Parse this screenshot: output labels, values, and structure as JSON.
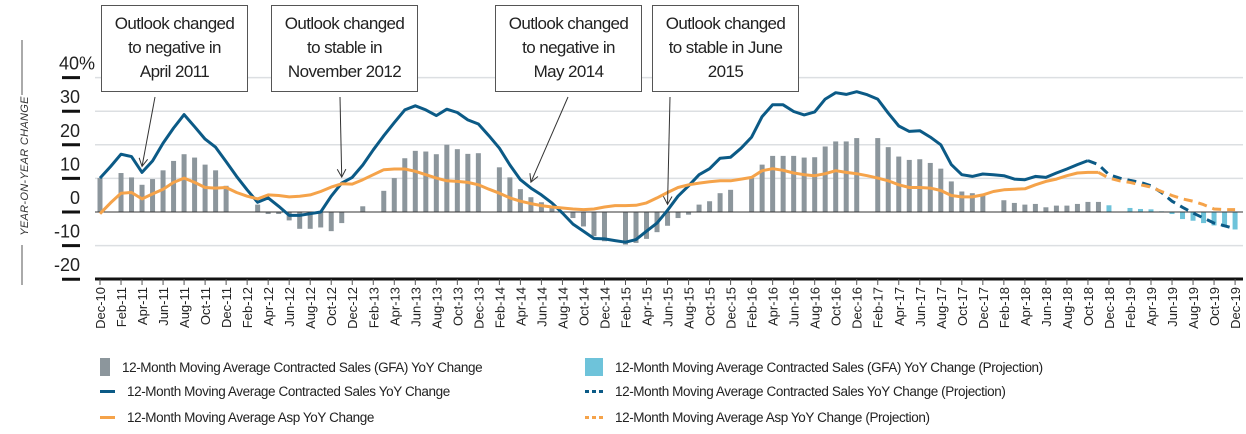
{
  "chart_data": {
    "type": "bar+line",
    "ylabel": "YEAR-ON-YEAR CHANGE",
    "ylim": [
      -20,
      40
    ],
    "yticks": [
      "40%",
      "30",
      "20",
      "10",
      "0",
      "-10",
      "-20"
    ],
    "ytick_values": [
      40,
      30,
      20,
      10,
      0,
      -10,
      -20
    ],
    "grid": true,
    "legend_position": "bottom",
    "start_month": "Dec-10",
    "x_tick_labels": [
      "Dec-10",
      "Feb-11",
      "Apr-11",
      "Jun-11",
      "Aug-11",
      "Oct-11",
      "Dec-11",
      "Feb-12",
      "Apr-12",
      "Jun-12",
      "Aug-12",
      "Oct-12",
      "Dec-12",
      "Feb-13",
      "Apr-13",
      "Jun-13",
      "Aug-13",
      "Oct-13",
      "Dec-13",
      "Feb-14",
      "Apr-14",
      "Jun-14",
      "Aug-14",
      "Oct-14",
      "Dec-14",
      "Feb-15",
      "Apr-15",
      "Jun-15",
      "Aug-15",
      "Oct-15",
      "Dec-15",
      "Feb-16",
      "Apr-16",
      "Jun-16",
      "Aug-16",
      "Oct-16",
      "Dec-16",
      "Feb-17",
      "Apr-17",
      "Jun-17",
      "Aug-17",
      "Oct-17",
      "Dec-17",
      "Feb-18",
      "Apr-18",
      "Jun-18",
      "Aug-18",
      "Oct-18",
      "Dec-18",
      "Feb-19",
      "Apr-19",
      "Jun-19",
      "Aug-19",
      "Oct-19",
      "Dec-19"
    ],
    "series": [
      {
        "name": "12-Month Moving Average Contracted Sales (GFA) YoY Change",
        "type": "bar",
        "color": "#8c969c",
        "values": [
          10.1,
          null,
          11.6,
          10.3,
          8.1,
          9.8,
          12.4,
          15.2,
          17.2,
          16.2,
          14.1,
          12.4,
          7.8,
          null,
          null,
          2.2,
          -0.6,
          -0.6,
          -2.5,
          -5,
          -5,
          -4.6,
          -5.7,
          -3.3,
          null,
          1.7,
          null,
          6.3,
          10.1,
          16,
          18.2,
          18,
          17.2,
          20,
          18.7,
          17.3,
          17.5,
          null,
          13.3,
          10.3,
          6.8,
          4.4,
          2.9,
          1.7,
          null,
          -1.8,
          -4.3,
          -7.2,
          -8.7,
          null,
          -9.7,
          -9.2,
          -8,
          -6,
          -4.1,
          -1.8,
          -0.8,
          2.2,
          3.2,
          5.6,
          6.6,
          null,
          10.1,
          14.1,
          16.7,
          16.7,
          16.7,
          16.2,
          16.3,
          19.5,
          21,
          21,
          22,
          null,
          22,
          19.3,
          16.5,
          15.5,
          15.7,
          14.6,
          12.9,
          9.1,
          6.1,
          5.6,
          5.1,
          null,
          3.5,
          2.7,
          2.2,
          2.4,
          1.4,
          1.9,
          1.9,
          2.4,
          3,
          3
        ]
      },
      {
        "name": "12-Month Moving Average Contracted Sales (GFA) YoY Change (Projection)",
        "type": "bar",
        "color": "#6ec3da",
        "start_index": 96,
        "values": [
          2,
          null,
          1.2,
          0.9,
          0.8,
          0.2,
          -0.6,
          -2.1,
          -2.6,
          -3.3,
          -4,
          -4.5,
          -5.2
        ]
      },
      {
        "name": "12-Month Moving Average Contracted Sales YoY Change",
        "type": "line",
        "color": "#0b5a86",
        "values": [
          10.1,
          13.5,
          17.2,
          16.5,
          11.8,
          15.2,
          20.5,
          25,
          29,
          25.4,
          21.7,
          19.3,
          15,
          10.6,
          6.6,
          2.9,
          4.2,
          1.7,
          -1,
          -1,
          -0.5,
          0,
          4.7,
          8.6,
          10.3,
          14,
          18.5,
          22.7,
          26.6,
          30.4,
          31.6,
          30.4,
          28.7,
          30.6,
          29.6,
          27.4,
          26.2,
          22.7,
          19,
          14,
          9.6,
          7.1,
          5.1,
          2.7,
          -0.3,
          -3.6,
          -5.7,
          -7.9,
          -8,
          -8.5,
          -9,
          -8.2,
          -5.7,
          -3.3,
          0.5,
          4.7,
          7.8,
          11.1,
          12.9,
          16,
          16.3,
          19,
          22.3,
          28.4,
          31.9,
          31.9,
          29.9,
          28.9,
          29.8,
          33.6,
          35.5,
          35,
          35.8,
          34.9,
          33.6,
          29.4,
          25.6,
          24,
          24.2,
          22.3,
          20,
          14.1,
          11.1,
          10.6,
          11.3,
          11.1,
          10.8,
          9.8,
          9.6,
          10.6,
          10.3,
          11.6,
          12.8,
          14.1,
          15.3
        ]
      },
      {
        "name": "12-Month Moving Average Contracted Sales YoY Change (Projection)",
        "type": "line",
        "dashed": true,
        "color": "#0b5a86",
        "start_index": 94,
        "values": [
          15.3,
          14.1,
          11.1,
          10.1,
          9.4,
          8.8,
          7.8,
          5.8,
          3.2,
          1.4,
          -0.3,
          -1.8,
          -3.3,
          -4.1,
          -5
        ]
      },
      {
        "name": "12-Month Moving Average Asp YoY Change",
        "type": "line",
        "color": "#f5a34a",
        "values": [
          -0.5,
          2.7,
          5.6,
          5.8,
          3.9,
          5.4,
          6.8,
          8.8,
          10.1,
          8.8,
          7.3,
          7.1,
          7.3,
          5.8,
          4.7,
          3.9,
          5.1,
          4.9,
          4.5,
          4.7,
          5.1,
          6.1,
          7.4,
          8.4,
          8.3,
          9.6,
          11.1,
          12.6,
          12.8,
          12.8,
          12.1,
          11.1,
          10.1,
          9.3,
          9.1,
          8.8,
          8.1,
          6.8,
          5.6,
          4.2,
          3.2,
          2.5,
          1.9,
          1.5,
          1.2,
          0.9,
          0.7,
          0.9,
          1.5,
          1.9,
          1.9,
          2,
          2.7,
          4.2,
          5.8,
          7.3,
          8.1,
          8.6,
          9,
          9.3,
          9.3,
          9.8,
          10.3,
          12.3,
          12.9,
          12.4,
          11.6,
          11.1,
          10.8,
          11.4,
          12.3,
          11.8,
          11.4,
          10.8,
          10.1,
          9.3,
          8.1,
          7.3,
          7.3,
          7.1,
          6.4,
          4.9,
          4.5,
          4.5,
          5.1,
          6.1,
          6.6,
          6.8,
          6.9,
          8.1,
          9.1,
          9.8,
          10.8,
          11.6,
          11.8,
          11.8
        ]
      },
      {
        "name": "12-Month Moving Average Asp YoY Change (Projection)",
        "type": "line",
        "dashed": true,
        "color": "#f5a34a",
        "start_index": 95,
        "values": [
          11.8,
          10.1,
          9.3,
          8.8,
          8.1,
          7.4,
          6.1,
          4.9,
          3.9,
          3.2,
          2.2,
          0.9,
          0.7,
          0.7
        ]
      }
    ],
    "annotations": [
      {
        "lines": [
          "Outlook changed",
          "to negative in",
          "April 2011"
        ],
        "month_index": 4
      },
      {
        "lines": [
          "Outlook changed",
          "to stable in",
          "November 2012"
        ],
        "month_index": 23
      },
      {
        "lines": [
          "Outlook changed",
          "to negative in",
          "May 2014"
        ],
        "month_index": 41
      },
      {
        "lines": [
          "Outlook changed",
          "to stable in June",
          "2015"
        ],
        "month_index": 54
      }
    ]
  }
}
